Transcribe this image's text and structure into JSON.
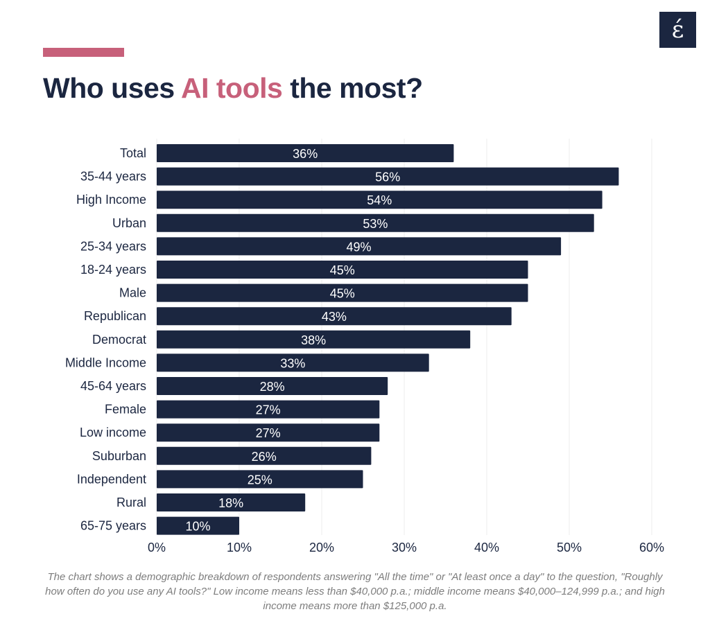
{
  "header": {
    "title_before": "Who uses ",
    "title_highlight": "AI tools",
    "title_after": " the most?",
    "logo_text": "έ"
  },
  "colors": {
    "bar": "#1b2640",
    "accent": "#c7607a",
    "grid": "#ececec"
  },
  "caption": "The chart shows a demographic breakdown of respondents answering \"All the time\" or \"At least once a day\" to the question, \"Roughly how often do you use any AI tools?\" Low income means less than $40,000 p.a.; middle income means $40,000–124,999 p.a.; and high income means more than $125,000 p.a.",
  "chart_data": {
    "type": "bar",
    "orientation": "horizontal",
    "categories": [
      "Total",
      "35-44 years",
      "High Income",
      "Urban",
      "25-34 years",
      "18-24 years",
      "Male",
      "Republican",
      "Democrat",
      "Middle Income",
      "45-64 years",
      "Female",
      "Low income",
      "Suburban",
      "Independent",
      "Rural",
      "65-75 years"
    ],
    "values": [
      36,
      56,
      54,
      53,
      49,
      45,
      45,
      43,
      38,
      33,
      28,
      27,
      27,
      26,
      25,
      18,
      10
    ],
    "data_labels": [
      "36%",
      "56%",
      "54%",
      "53%",
      "49%",
      "45%",
      "45%",
      "43%",
      "38%",
      "33%",
      "28%",
      "27%",
      "27%",
      "26%",
      "25%",
      "18%",
      "10%"
    ],
    "xlim": [
      0,
      60
    ],
    "x_ticks": [
      0,
      10,
      20,
      30,
      40,
      50,
      60
    ],
    "x_tick_labels": [
      "0%",
      "10%",
      "20%",
      "30%",
      "40%",
      "50%",
      "60%"
    ],
    "grid": true,
    "legend": "none"
  }
}
